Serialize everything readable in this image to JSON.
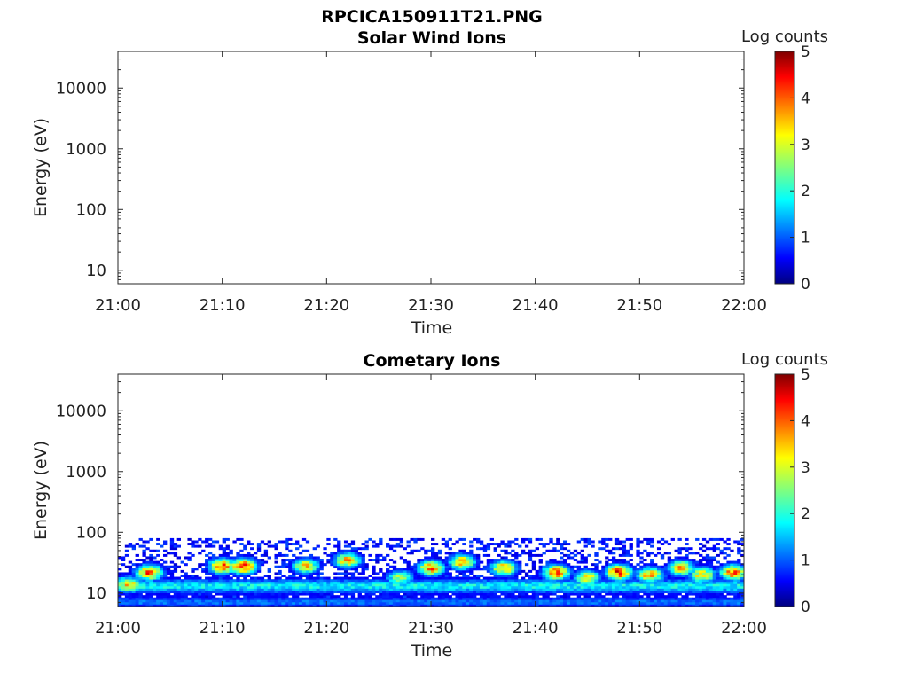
{
  "figure": {
    "title": "RPCICA150911T21.PNG"
  },
  "chart_data": [
    {
      "type": "heatmap",
      "title": "Solar Wind Ions",
      "xlabel": "Time",
      "ylabel": "Energy (eV)",
      "x_ticks": [
        "21:00",
        "21:10",
        "21:20",
        "21:30",
        "21:40",
        "21:50",
        "22:00"
      ],
      "xlim": [
        "21:00",
        "22:00"
      ],
      "y_scale": "log",
      "y_ticks": [
        "10",
        "100",
        "1000",
        "10000"
      ],
      "ylim": [
        6,
        40000
      ],
      "colorbar": {
        "label": "Log counts",
        "range": [
          0,
          5
        ],
        "ticks": [
          "0",
          "1",
          "2",
          "3",
          "4",
          "5"
        ],
        "colormap": "jet"
      },
      "data_present": false
    },
    {
      "type": "heatmap",
      "title": "Cometary Ions",
      "xlabel": "Time",
      "ylabel": "Energy (eV)",
      "x_ticks": [
        "21:00",
        "21:10",
        "21:20",
        "21:30",
        "21:40",
        "21:50",
        "22:00"
      ],
      "xlim": [
        "21:00",
        "22:00"
      ],
      "y_scale": "log",
      "y_ticks": [
        "10",
        "100",
        "1000",
        "10000"
      ],
      "ylim": [
        6,
        40000
      ],
      "colorbar": {
        "label": "Log counts",
        "range": [
          0,
          5
        ],
        "ticks": [
          "0",
          "1",
          "2",
          "3",
          "4",
          "5"
        ],
        "colormap": "jet"
      },
      "data_present": true,
      "energy_max_eV": 80,
      "peaks": [
        {
          "t": "21:01",
          "e": 14,
          "log_counts": 3.5
        },
        {
          "t": "21:03",
          "e": 22,
          "log_counts": 4.0
        },
        {
          "t": "21:10",
          "e": 28,
          "log_counts": 4.0
        },
        {
          "t": "21:12",
          "e": 28,
          "log_counts": 4.4
        },
        {
          "t": "21:18",
          "e": 28,
          "log_counts": 3.3
        },
        {
          "t": "21:22",
          "e": 35,
          "log_counts": 3.5
        },
        {
          "t": "21:27",
          "e": 18,
          "log_counts": 2.8
        },
        {
          "t": "21:30",
          "e": 26,
          "log_counts": 3.8
        },
        {
          "t": "21:33",
          "e": 33,
          "log_counts": 3.6
        },
        {
          "t": "21:37",
          "e": 26,
          "log_counts": 3.6
        },
        {
          "t": "21:42",
          "e": 22,
          "log_counts": 4.1
        },
        {
          "t": "21:45",
          "e": 18,
          "log_counts": 3.2
        },
        {
          "t": "21:48",
          "e": 22,
          "log_counts": 4.3
        },
        {
          "t": "21:51",
          "e": 20,
          "log_counts": 3.6
        },
        {
          "t": "21:54",
          "e": 26,
          "log_counts": 3.5
        },
        {
          "t": "21:56",
          "e": 20,
          "log_counts": 3.4
        },
        {
          "t": "21:59",
          "e": 22,
          "log_counts": 4.0
        }
      ]
    }
  ]
}
